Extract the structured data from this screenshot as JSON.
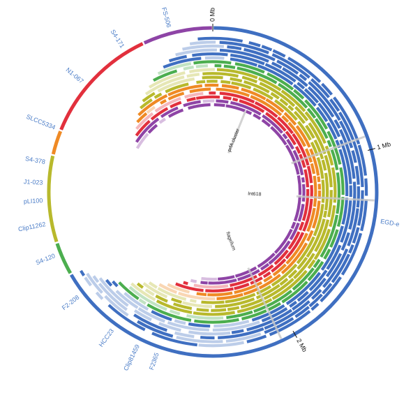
{
  "scale_labels": [
    "0 Mb",
    "1 Mb",
    "2 Mb"
  ],
  "genomes": [
    "FS-506",
    "S4-171",
    "N1-067",
    "SLCC5334",
    "S4-378",
    "J1-023",
    "pLI100",
    "Clip11262",
    "S4-120",
    "F2-208",
    "HCC23",
    "Clip81459",
    "F2365",
    "EGD-e"
  ],
  "features": [
    "prfA cluster",
    "lnt618",
    "flagellum"
  ]
}
